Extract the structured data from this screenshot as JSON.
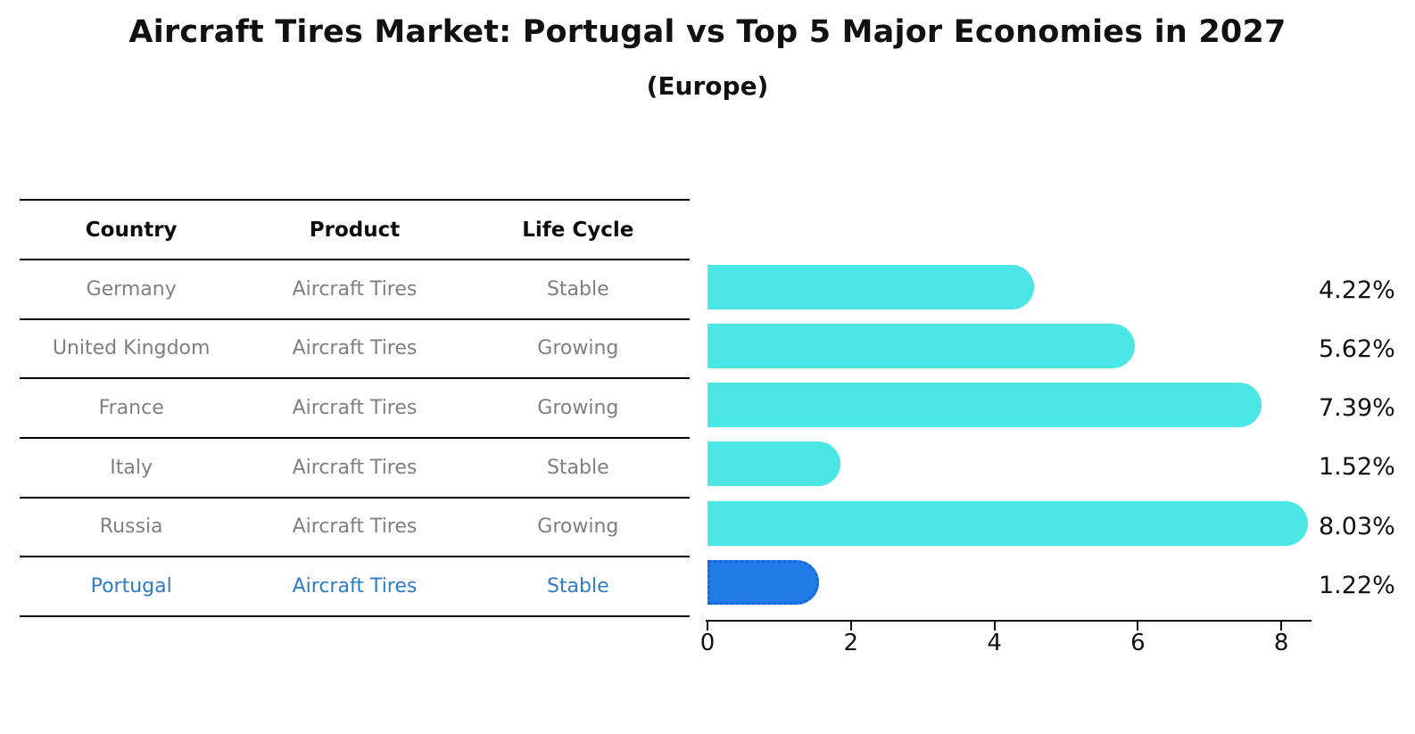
{
  "title": "Aircraft Tires Market: Portugal vs Top 5 Major Economies in 2027",
  "subtitle": "(Europe)",
  "table": {
    "headers": [
      "Country",
      "Product",
      "Life Cycle"
    ],
    "rows": [
      {
        "country": "Germany",
        "product": "Aircraft Tires",
        "life_cycle": "Stable",
        "highlight": false
      },
      {
        "country": "United Kingdom",
        "product": "Aircraft Tires",
        "life_cycle": "Growing",
        "highlight": false
      },
      {
        "country": "France",
        "product": "Aircraft Tires",
        "life_cycle": "Growing",
        "highlight": false
      },
      {
        "country": "Italy",
        "product": "Aircraft Tires",
        "life_cycle": "Stable",
        "highlight": false
      },
      {
        "country": "Russia",
        "product": "Aircraft Tires",
        "life_cycle": "Growing",
        "highlight": false
      },
      {
        "country": "Portugal",
        "product": "Aircraft Tires",
        "life_cycle": "Stable",
        "highlight": true
      }
    ]
  },
  "chart_data": {
    "type": "bar",
    "orientation": "horizontal",
    "title": "Aircraft Tires Market: Portugal vs Top 5 Major Economies in 2027",
    "subtitle": "(Europe)",
    "categories": [
      "Germany",
      "United Kingdom",
      "France",
      "Italy",
      "Russia",
      "Portugal"
    ],
    "values": [
      4.22,
      5.62,
      7.39,
      1.52,
      8.03,
      1.22
    ],
    "value_labels": [
      "4.22%",
      "5.62%",
      "7.39%",
      "1.52%",
      "8.03%",
      "1.22%"
    ],
    "x_ticks": [
      0,
      2,
      4,
      6,
      8
    ],
    "xlim": [
      0,
      8.46
    ],
    "grid": false,
    "legend": "none",
    "bar_color": "#4be6e6",
    "highlight_bar_color": "#1e7be8",
    "highlight_index": 5
  },
  "colors": {
    "row_text": "#7f7f7f",
    "highlight_text": "#2e7bc8",
    "heading_text": "#111111",
    "axis": "#111111"
  }
}
